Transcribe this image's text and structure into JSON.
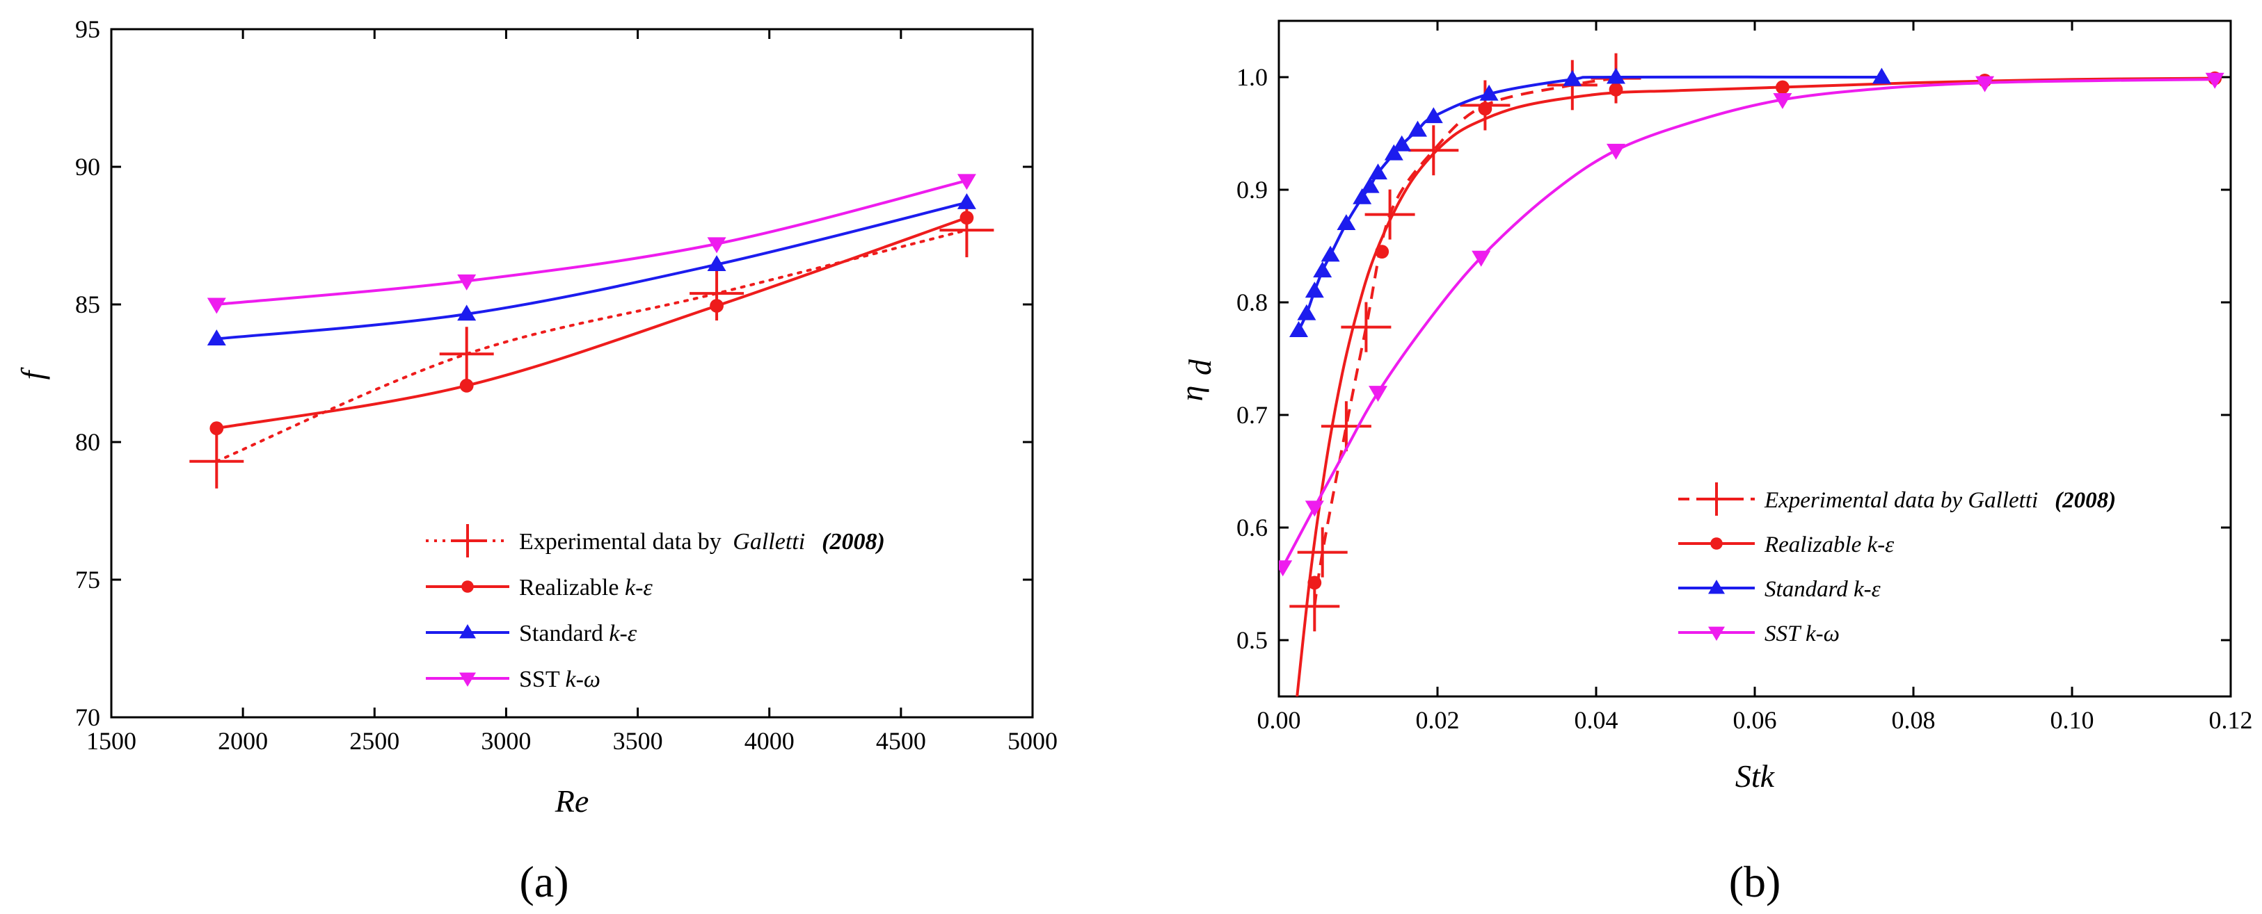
{
  "colors": {
    "experimental": "#ee1c1c",
    "realizable": "#ee1c1c",
    "standard": "#1c1cee",
    "sst": "#ee1cee",
    "axis": "#000000"
  },
  "chart_data": [
    {
      "panel": "a",
      "panel_label": "(a)",
      "type": "line",
      "xlabel": "Re",
      "ylabel": "f",
      "xlim": [
        1500,
        5000
      ],
      "ylim": [
        70,
        95
      ],
      "xticks": [
        1500,
        2000,
        2500,
        3000,
        3500,
        4000,
        4500,
        5000
      ],
      "yticks": [
        70,
        75,
        80,
        85,
        90,
        95
      ],
      "legend_position": "bottom-right",
      "series": [
        {
          "name": "Experimental data by Galletti (2008)",
          "legend": {
            "plain": "Experimental data by ",
            "italic": "Galletti",
            "bold": "(2008)"
          },
          "color_key": "experimental",
          "marker": "plus",
          "line": "dotted",
          "x": [
            1900,
            2850,
            3800,
            4750
          ],
          "y": [
            79.3,
            83.2,
            85.4,
            87.7
          ]
        },
        {
          "name": "Realizable k-ε",
          "legend": {
            "plain": "Realizable ",
            "italic": "k-ε"
          },
          "color_key": "realizable",
          "marker": "circle",
          "line": "solid",
          "x": [
            1900,
            2850,
            3800,
            4750
          ],
          "y": [
            80.5,
            82.05,
            84.95,
            88.15
          ]
        },
        {
          "name": "Standard k-ε",
          "legend": {
            "plain": "Standard ",
            "italic": "k-ε"
          },
          "color_key": "standard",
          "marker": "triangle-up",
          "line": "solid",
          "x": [
            1900,
            2850,
            3800,
            4750
          ],
          "y": [
            83.75,
            84.65,
            86.45,
            88.7
          ]
        },
        {
          "name": "SST k-ω",
          "legend": {
            "plain": "SST ",
            "italic": "k-ω"
          },
          "color_key": "sst",
          "marker": "triangle-down",
          "line": "solid",
          "x": [
            1900,
            2850,
            3800,
            4750
          ],
          "y": [
            85.0,
            85.85,
            87.2,
            89.5
          ]
        }
      ]
    },
    {
      "panel": "b",
      "panel_label": "(b)",
      "type": "line",
      "xlabel": "Stk",
      "ylabel": "η",
      "ylabel_sub": "d",
      "xlim": [
        0.0,
        0.12
      ],
      "ylim": [
        0.45,
        1.05
      ],
      "xticks": [
        0.0,
        0.02,
        0.04,
        0.06,
        0.08,
        0.1,
        0.12
      ],
      "xtick_labels": [
        "0.00",
        "0.02",
        "0.04",
        "0.06",
        "0.08",
        "0.10",
        "0.12"
      ],
      "yticks": [
        0.5,
        0.6,
        0.7,
        0.8,
        0.9,
        1.0
      ],
      "ytick_labels": [
        "0.5",
        "0.6",
        "0.7",
        "0.8",
        "0.9",
        "1.0"
      ],
      "legend_position": "center-right",
      "series": [
        {
          "name": "Experimental data by Galletti (2008)",
          "legend": {
            "italic": "Experimental data by Galletti",
            "bold": "(2008)"
          },
          "color_key": "experimental",
          "marker": "plus",
          "line": "dashed",
          "x": [
            0.0045,
            0.0055,
            0.0085,
            0.011,
            0.014,
            0.0195,
            0.026,
            0.037,
            0.0425
          ],
          "y": [
            0.53,
            0.578,
            0.69,
            0.778,
            0.878,
            0.935,
            0.975,
            0.993,
            0.999
          ],
          "curve_x": [
            0.0045,
            0.0055,
            0.0085,
            0.011,
            0.014,
            0.0195,
            0.026,
            0.037,
            0.0425
          ],
          "curve_y": [
            0.53,
            0.578,
            0.69,
            0.778,
            0.878,
            0.935,
            0.975,
            0.993,
            0.999
          ]
        },
        {
          "name": "Realizable k-ε",
          "legend": {
            "italic": "Realizable k-ε"
          },
          "color_key": "realizable",
          "marker": "circle",
          "line": "solid",
          "x": [
            0.0045,
            0.013,
            0.026,
            0.0425,
            0.0635,
            0.089,
            0.118
          ],
          "y": [
            0.551,
            0.845,
            0.972,
            0.989,
            0.991,
            0.997,
            0.999
          ],
          "curve_x": [
            0.002,
            0.004,
            0.006,
            0.008,
            0.01,
            0.012,
            0.015,
            0.018,
            0.022,
            0.026,
            0.03,
            0.035,
            0.042,
            0.05,
            0.063,
            0.08,
            0.1,
            0.118
          ],
          "curve_y": [
            0.43,
            0.56,
            0.66,
            0.737,
            0.795,
            0.84,
            0.887,
            0.92,
            0.948,
            0.963,
            0.973,
            0.98,
            0.986,
            0.988,
            0.991,
            0.995,
            0.998,
            0.999
          ]
        },
        {
          "name": "Standard k-ε",
          "legend": {
            "italic": "Standard k-ε"
          },
          "color_key": "standard",
          "marker": "triangle-up",
          "line": "solid",
          "x": [
            0.0025,
            0.0035,
            0.0045,
            0.0055,
            0.0065,
            0.0085,
            0.0105,
            0.0115,
            0.0125,
            0.0145,
            0.0155,
            0.0175,
            0.0195,
            0.0265,
            0.037,
            0.0425,
            0.076
          ],
          "y": [
            0.775,
            0.79,
            0.81,
            0.828,
            0.842,
            0.87,
            0.893,
            0.903,
            0.915,
            0.932,
            0.94,
            0.953,
            0.965,
            0.985,
            0.998,
            1.0,
            1.0
          ],
          "curve_x": [
            0.0025,
            0.0035,
            0.0045,
            0.0055,
            0.0065,
            0.0085,
            0.0105,
            0.0115,
            0.0125,
            0.0145,
            0.0155,
            0.0175,
            0.0195,
            0.0265,
            0.037,
            0.0425,
            0.076
          ],
          "curve_y": [
            0.775,
            0.79,
            0.81,
            0.828,
            0.842,
            0.87,
            0.893,
            0.903,
            0.915,
            0.932,
            0.94,
            0.953,
            0.965,
            0.985,
            0.998,
            1.0,
            1.0
          ]
        },
        {
          "name": "SST k-ω",
          "legend": {
            "italic": "SST k-ω"
          },
          "color_key": "sst",
          "marker": "triangle-down",
          "line": "solid",
          "x": [
            0.0005,
            0.0045,
            0.0125,
            0.0255,
            0.0425,
            0.0635,
            0.089,
            0.118
          ],
          "y": [
            0.565,
            0.618,
            0.72,
            0.84,
            0.935,
            0.98,
            0.995,
            0.998
          ],
          "curve_x": [
            0.0005,
            0.0045,
            0.0085,
            0.0125,
            0.019,
            0.0255,
            0.034,
            0.0425,
            0.053,
            0.0635,
            0.076,
            0.089,
            0.104,
            0.118
          ],
          "curve_y": [
            0.565,
            0.618,
            0.67,
            0.72,
            0.785,
            0.84,
            0.895,
            0.935,
            0.962,
            0.98,
            0.99,
            0.995,
            0.997,
            0.998
          ]
        }
      ]
    }
  ]
}
